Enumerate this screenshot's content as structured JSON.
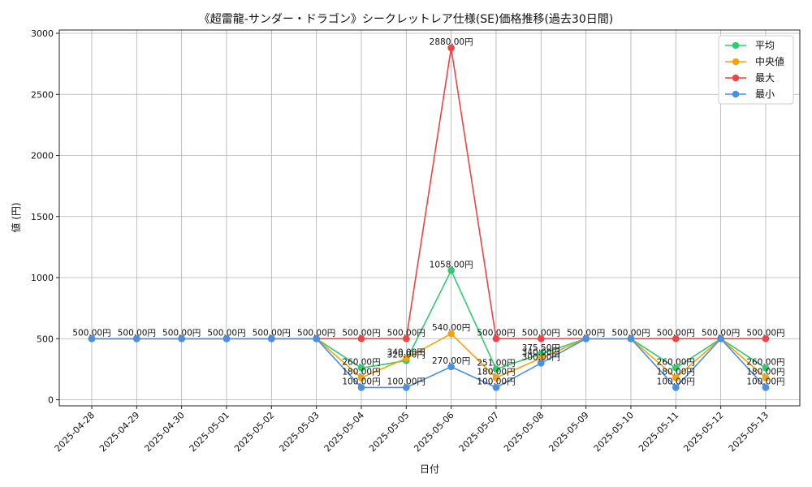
{
  "chart_data": {
    "type": "line",
    "title": "《超雷龍-サンダー・ドラゴン》シークレットレア仕様(SE)価格推移(過去30日間)",
    "xlabel": "日付",
    "ylabel": "値 (円)",
    "ylim": [
      -20,
      3020
    ],
    "yticks": [
      0,
      500,
      1000,
      1500,
      2000,
      2500,
      3000
    ],
    "ytick_labels": [
      "0",
      "500",
      "1000",
      "1500",
      "2000",
      "2500",
      "3000"
    ],
    "grid": true,
    "legend_position": "top-right",
    "categories": [
      "2025-04-28",
      "2025-04-29",
      "2025-04-30",
      "2025-05-01",
      "2025-05-02",
      "2025-05-03",
      "2025-05-04",
      "2025-05-05",
      "2025-05-06",
      "2025-05-07",
      "2025-05-08",
      "2025-05-09",
      "2025-05-10",
      "2025-05-11",
      "2025-05-12",
      "2025-05-13"
    ],
    "series": [
      {
        "name": "平均",
        "color": "#2ecc71",
        "values": [
          500,
          500,
          500,
          500,
          500,
          500,
          260,
          320,
          1058,
          251,
          375.5,
          500,
          500,
          260,
          500,
          260
        ]
      },
      {
        "name": "中央値",
        "color": "#f5a30a",
        "values": [
          500,
          500,
          500,
          500,
          500,
          500,
          180,
          340,
          540,
          180,
          340,
          500,
          500,
          180,
          500,
          180
        ]
      },
      {
        "name": "最大",
        "color": "#ef4444",
        "values": [
          500,
          500,
          500,
          500,
          500,
          500,
          500,
          500,
          2880,
          500,
          500,
          500,
          500,
          500,
          500,
          500
        ]
      },
      {
        "name": "最小",
        "color": "#4a90e2",
        "values": [
          500,
          500,
          500,
          500,
          500,
          500,
          100,
          100,
          270,
          100,
          300,
          500,
          500,
          100,
          500,
          100
        ]
      }
    ],
    "data_labels": [
      {
        "date": "2025-04-28",
        "text": "500.00円"
      },
      {
        "date": "2025-04-29",
        "text": "500.00円"
      },
      {
        "date": "2025-04-30",
        "text": "500.00円"
      },
      {
        "date": "2025-05-01",
        "text": "500.00円"
      },
      {
        "date": "2025-05-02",
        "text": "500.00円"
      },
      {
        "date": "2025-05-03",
        "text": "500.00円"
      },
      {
        "date": "2025-05-04",
        "text": "500.00円"
      },
      {
        "date": "2025-05-04",
        "text": "260.00円"
      },
      {
        "date": "2025-05-04",
        "text": "180.00円"
      },
      {
        "date": "2025-05-04",
        "text": "100.00円"
      },
      {
        "date": "2025-05-05",
        "text": "500.00円"
      },
      {
        "date": "2025-05-05",
        "text": "340.00円"
      },
      {
        "date": "2025-05-05",
        "text": "320.00円"
      },
      {
        "date": "2025-05-05",
        "text": "100.00円"
      },
      {
        "date": "2025-05-06",
        "text": "2880.00円"
      },
      {
        "date": "2025-05-06",
        "text": "1058.00円"
      },
      {
        "date": "2025-05-06",
        "text": "540.00円"
      },
      {
        "date": "2025-05-06",
        "text": "270.00円"
      },
      {
        "date": "2025-05-07",
        "text": "500.00円"
      },
      {
        "date": "2025-05-07",
        "text": "251.00円"
      },
      {
        "date": "2025-05-07",
        "text": "180.00円"
      },
      {
        "date": "2025-05-07",
        "text": "100.00円"
      },
      {
        "date": "2025-05-08",
        "text": "500.00円"
      },
      {
        "date": "2025-05-08",
        "text": "375.50円"
      },
      {
        "date": "2025-05-08",
        "text": "340.00円"
      },
      {
        "date": "2025-05-08",
        "text": "300.00円"
      },
      {
        "date": "2025-05-09",
        "text": "500.00円"
      },
      {
        "date": "2025-05-10",
        "text": "500.00円"
      },
      {
        "date": "2025-05-11",
        "text": "500.00円"
      },
      {
        "date": "2025-05-11",
        "text": "260.00円"
      },
      {
        "date": "2025-05-11",
        "text": "180.00円"
      },
      {
        "date": "2025-05-11",
        "text": "100.00円"
      },
      {
        "date": "2025-05-12",
        "text": "500.00円"
      },
      {
        "date": "2025-05-13",
        "text": "500.00円"
      },
      {
        "date": "2025-05-13",
        "text": "260.00円"
      },
      {
        "date": "2025-05-13",
        "text": "180.00円"
      },
      {
        "date": "2025-05-13",
        "text": "100.00円"
      }
    ]
  }
}
